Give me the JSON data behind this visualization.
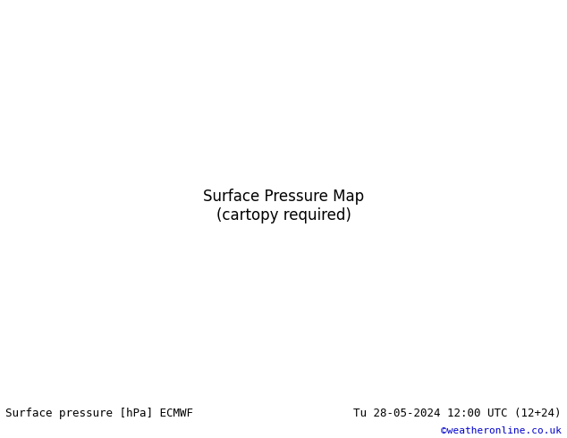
{
  "title_left": "Surface pressure [hPa] ECMWF",
  "title_right": "Tu 28-05-2024 12:00 UTC (12+24)",
  "credit": "©weatheronline.co.uk",
  "credit_color": "#0000cc",
  "background_color": "#ffffff",
  "map_background": "#dddddd",
  "land_color": "#cccccc",
  "land_high_color": "#aaddaa",
  "ocean_color": "#dddddd",
  "isobar_interval": 4,
  "isobar_base": 1013,
  "isobar_color_low": "#0000cc",
  "isobar_color_high": "#cc0000",
  "isobar_color_1013": "#000000",
  "isobar_linewidth": 0.7,
  "isobar_1013_linewidth": 1.5,
  "label_fontsize": 7,
  "title_fontsize": 9,
  "credit_fontsize": 8,
  "figsize": [
    6.34,
    4.9
  ],
  "dpi": 100
}
